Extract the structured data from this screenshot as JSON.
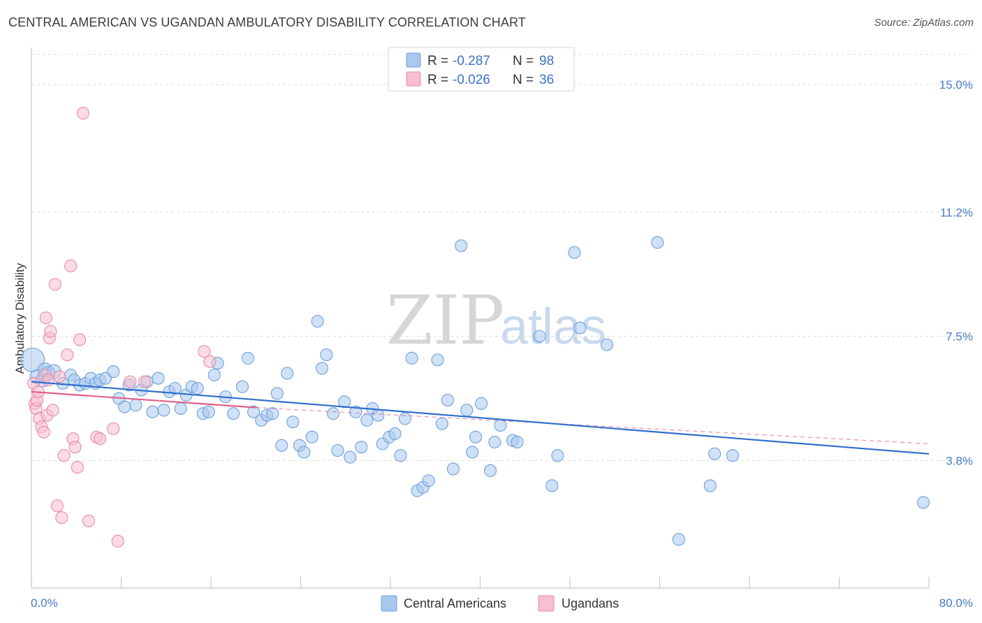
{
  "title": "CENTRAL AMERICAN VS UGANDAN AMBULATORY DISABILITY CORRELATION CHART",
  "source": "Source: ZipAtlas.com",
  "colors": {
    "blue_fill": "#a9c8f0",
    "blue_stroke": "#6f9fd8",
    "blue_line": "#2f6fcc",
    "pink_fill": "#f7bfd0",
    "pink_stroke": "#e88aa8",
    "pink_line": "#e0608a",
    "grid": "#dcdcdc",
    "tick_text": "#4a7cc7"
  },
  "legend": {
    "rows": [
      {
        "r_label": "R =",
        "r_value": "-0.287",
        "n_label": "N =",
        "n_value": "98"
      },
      {
        "r_label": "R =",
        "r_value": "-0.026",
        "n_label": "N =",
        "n_value": "36"
      }
    ]
  },
  "watermark": {
    "zip": "ZIP",
    "atlas": "atlas"
  },
  "chart_data": {
    "type": "scatter",
    "title": "CENTRAL AMERICAN VS UGANDAN AMBULATORY DISABILITY CORRELATION CHART",
    "xlabel": "",
    "ylabel": "Ambulatory Disability",
    "xlim": [
      0,
      80
    ],
    "ylim": [
      0,
      15.9
    ],
    "x_tick_labels": [
      "0.0%",
      "80.0%"
    ],
    "y_ticks": [
      3.8,
      7.5,
      11.2,
      15.0
    ],
    "y_tick_labels": [
      "3.8%",
      "7.5%",
      "11.2%",
      "15.0%"
    ],
    "grid": true,
    "legend_position": "top-center",
    "series": [
      {
        "name": "Central Americans",
        "r": -0.287,
        "n": 98,
        "trend": {
          "x0": 0,
          "y0": 6.15,
          "x1": 80,
          "y1": 4.0
        },
        "points": [
          [
            0.1,
            6.8
          ],
          [
            0.5,
            6.3
          ],
          [
            1.0,
            6.2
          ],
          [
            1.2,
            6.5
          ],
          [
            1.5,
            6.4
          ],
          [
            2.0,
            6.45
          ],
          [
            2.8,
            6.1
          ],
          [
            3.5,
            6.35
          ],
          [
            3.8,
            6.2
          ],
          [
            4.3,
            6.05
          ],
          [
            4.8,
            6.1
          ],
          [
            5.3,
            6.25
          ],
          [
            5.7,
            6.1
          ],
          [
            6.1,
            6.2
          ],
          [
            6.6,
            6.25
          ],
          [
            7.3,
            6.45
          ],
          [
            7.8,
            5.65
          ],
          [
            8.3,
            5.4
          ],
          [
            8.7,
            6.05
          ],
          [
            9.3,
            5.45
          ],
          [
            9.8,
            5.9
          ],
          [
            10.3,
            6.15
          ],
          [
            10.8,
            5.25
          ],
          [
            11.3,
            6.25
          ],
          [
            11.8,
            5.3
          ],
          [
            12.3,
            5.85
          ],
          [
            12.8,
            5.95
          ],
          [
            13.3,
            5.35
          ],
          [
            13.8,
            5.75
          ],
          [
            14.3,
            6.0
          ],
          [
            14.8,
            5.95
          ],
          [
            15.3,
            5.2
          ],
          [
            15.8,
            5.25
          ],
          [
            16.3,
            6.35
          ],
          [
            16.6,
            6.7
          ],
          [
            17.3,
            5.7
          ],
          [
            18.0,
            5.2
          ],
          [
            18.8,
            6.0
          ],
          [
            19.3,
            6.85
          ],
          [
            19.8,
            5.25
          ],
          [
            20.5,
            5.0
          ],
          [
            21.0,
            5.15
          ],
          [
            21.5,
            5.2
          ],
          [
            21.9,
            5.8
          ],
          [
            22.3,
            4.25
          ],
          [
            22.8,
            6.4
          ],
          [
            23.3,
            4.95
          ],
          [
            23.9,
            4.25
          ],
          [
            24.3,
            4.05
          ],
          [
            25.0,
            4.5
          ],
          [
            25.5,
            7.95
          ],
          [
            25.9,
            6.55
          ],
          [
            26.3,
            6.95
          ],
          [
            26.9,
            5.2
          ],
          [
            27.3,
            4.1
          ],
          [
            27.9,
            5.55
          ],
          [
            28.4,
            3.9
          ],
          [
            28.9,
            5.25
          ],
          [
            29.4,
            4.2
          ],
          [
            29.9,
            5.0
          ],
          [
            30.4,
            5.35
          ],
          [
            30.9,
            5.15
          ],
          [
            31.3,
            4.3
          ],
          [
            31.9,
            4.5
          ],
          [
            32.4,
            4.6
          ],
          [
            32.9,
            3.95
          ],
          [
            33.3,
            5.05
          ],
          [
            33.9,
            6.85
          ],
          [
            34.4,
            2.9
          ],
          [
            34.9,
            3.0
          ],
          [
            35.4,
            3.2
          ],
          [
            36.2,
            6.8
          ],
          [
            36.6,
            4.9
          ],
          [
            37.1,
            5.6
          ],
          [
            37.6,
            3.55
          ],
          [
            38.3,
            10.2
          ],
          [
            38.8,
            5.3
          ],
          [
            39.3,
            4.05
          ],
          [
            39.6,
            4.5
          ],
          [
            40.1,
            5.5
          ],
          [
            40.9,
            3.5
          ],
          [
            41.3,
            4.35
          ],
          [
            41.8,
            4.85
          ],
          [
            42.9,
            4.4
          ],
          [
            43.3,
            4.35
          ],
          [
            45.3,
            7.5
          ],
          [
            46.4,
            3.05
          ],
          [
            46.9,
            3.95
          ],
          [
            48.4,
            10.0
          ],
          [
            48.9,
            7.75
          ],
          [
            51.3,
            7.25
          ],
          [
            55.8,
            10.3
          ],
          [
            57.7,
            1.45
          ],
          [
            60.5,
            3.05
          ],
          [
            60.9,
            4.0
          ],
          [
            62.5,
            3.95
          ],
          [
            79.5,
            2.55
          ]
        ]
      },
      {
        "name": "Ugandans",
        "r": -0.026,
        "n": 36,
        "trend": {
          "x0": 0,
          "y0": 5.85,
          "x1": 20,
          "y1": 5.38
        },
        "trend_extension": {
          "x0": 20,
          "y0": 5.38,
          "x1": 80,
          "y1": 4.3
        },
        "points": [
          [
            0.2,
            6.1
          ],
          [
            0.3,
            5.5
          ],
          [
            0.4,
            5.35
          ],
          [
            0.5,
            5.6
          ],
          [
            0.6,
            5.85
          ],
          [
            0.7,
            5.05
          ],
          [
            0.9,
            4.8
          ],
          [
            1.1,
            4.65
          ],
          [
            1.2,
            6.35
          ],
          [
            1.3,
            8.05
          ],
          [
            1.4,
            5.15
          ],
          [
            1.5,
            6.2
          ],
          [
            1.6,
            7.45
          ],
          [
            1.7,
            7.65
          ],
          [
            1.9,
            5.3
          ],
          [
            2.1,
            9.05
          ],
          [
            2.3,
            2.45
          ],
          [
            2.5,
            6.3
          ],
          [
            2.7,
            2.1
          ],
          [
            2.9,
            3.95
          ],
          [
            3.2,
            6.95
          ],
          [
            3.5,
            9.6
          ],
          [
            3.7,
            4.45
          ],
          [
            3.9,
            4.2
          ],
          [
            4.1,
            3.6
          ],
          [
            4.3,
            7.4
          ],
          [
            4.6,
            14.15
          ],
          [
            5.1,
            2.0
          ],
          [
            5.8,
            4.5
          ],
          [
            6.1,
            4.45
          ],
          [
            7.3,
            4.75
          ],
          [
            7.7,
            1.4
          ],
          [
            8.8,
            6.15
          ],
          [
            10.1,
            6.15
          ],
          [
            15.4,
            7.05
          ],
          [
            15.9,
            6.75
          ]
        ]
      }
    ]
  }
}
